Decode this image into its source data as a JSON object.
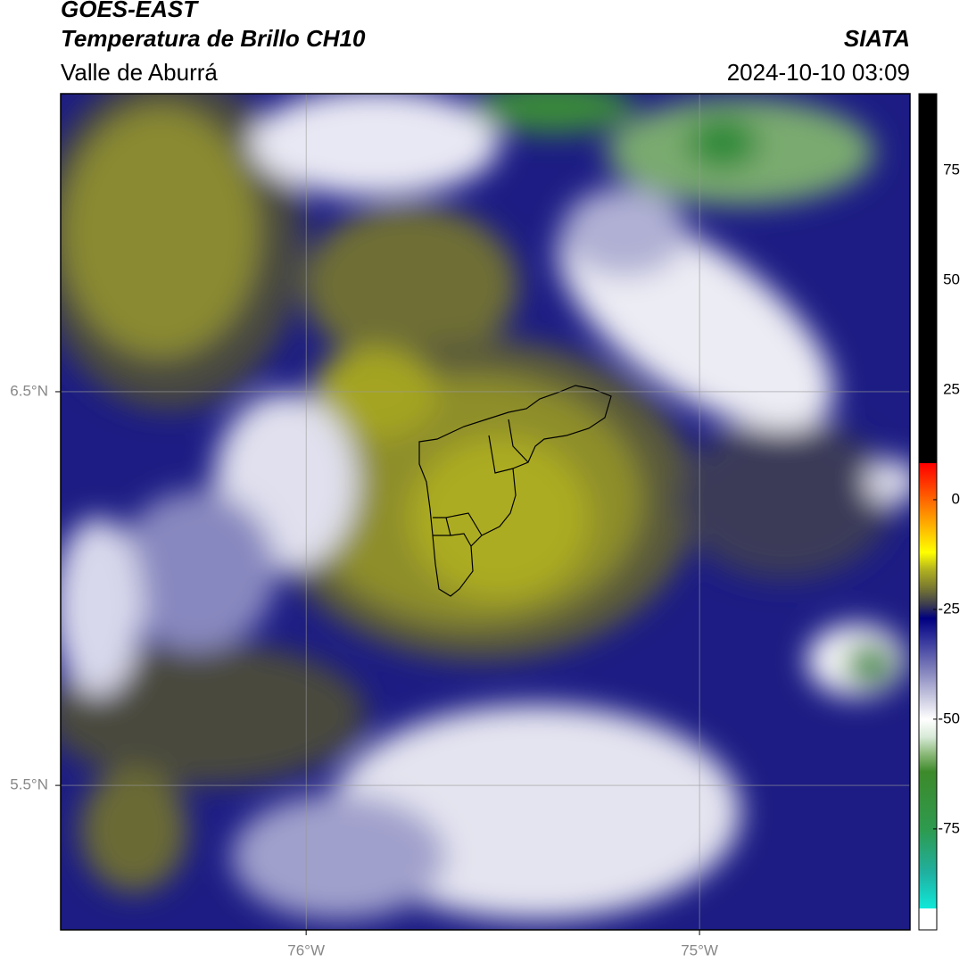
{
  "header": {
    "satellite": "GOES-EAST",
    "product": "Temperatura de Brillo CH10",
    "region": "Valle de Aburrá",
    "source": "SIATA",
    "datetime": "2024-10-10 03:09"
  },
  "map": {
    "latlim": [
      5.133,
      7.257
    ],
    "lonlim": [
      -76.624,
      -74.465
    ],
    "lat_ticks": [
      {
        "value": 6.5,
        "label": "6.5°N"
      },
      {
        "value": 5.5,
        "label": "5.5°N"
      }
    ],
    "lon_ticks": [
      {
        "value": -76,
        "label": "76°W"
      },
      {
        "value": -75,
        "label": "75°W"
      }
    ],
    "grid": true
  },
  "colorbar": {
    "lim": [
      -98,
      92.5
    ],
    "ticks": [
      75,
      50,
      25,
      0,
      -25,
      -50,
      -75
    ],
    "stops": [
      {
        "value": -98,
        "color": "#ffffff"
      },
      {
        "value": -93.1,
        "color": "#ffffff"
      },
      {
        "value": -93.1,
        "color": "#10e8d8"
      },
      {
        "value": -85,
        "color": "#20b0a0"
      },
      {
        "value": -75,
        "color": "#2e9a4e"
      },
      {
        "value": -62,
        "color": "#3d8a2a"
      },
      {
        "value": -58,
        "color": "#8ab878"
      },
      {
        "value": -54,
        "color": "#d8ead8"
      },
      {
        "value": -50,
        "color": "#ffffff"
      },
      {
        "value": -45,
        "color": "#c8c8e0"
      },
      {
        "value": -38,
        "color": "#7878b8"
      },
      {
        "value": -31,
        "color": "#2a2a98"
      },
      {
        "value": -27,
        "color": "#000080"
      },
      {
        "value": -24,
        "color": "#3a3a50"
      },
      {
        "value": -20,
        "color": "#7a7a30"
      },
      {
        "value": -16,
        "color": "#b0b020"
      },
      {
        "value": -12,
        "color": "#ffff00"
      },
      {
        "value": -4,
        "color": "#ff9900"
      },
      {
        "value": 4,
        "color": "#ff3300"
      },
      {
        "value": 8.3,
        "color": "#ff0000"
      },
      {
        "value": 8.3,
        "color": "#000000"
      },
      {
        "value": 92.5,
        "color": "#000000"
      }
    ]
  }
}
